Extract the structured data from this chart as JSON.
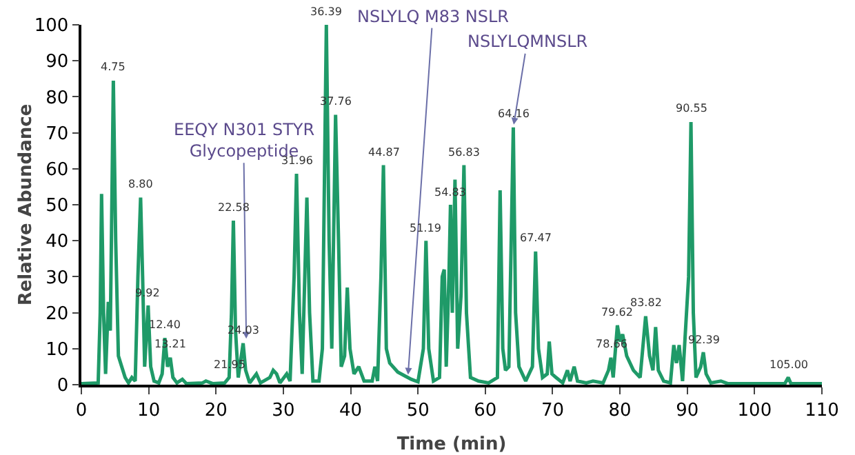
{
  "chart_data": {
    "type": "line",
    "xlabel": "Time (min)",
    "ylabel": "Relative Abundance",
    "xlim": [
      0,
      110
    ],
    "xticks": [
      0,
      10,
      20,
      30,
      40,
      50,
      60,
      70,
      80,
      90,
      100,
      110
    ],
    "ylim": [
      0,
      100
    ],
    "yticks": [
      0,
      10,
      20,
      30,
      40,
      50,
      60,
      70,
      80,
      90,
      100
    ],
    "grid": false,
    "marker": "none",
    "line_style": "solid",
    "series": [
      {
        "color": "#1f9a68",
        "x": [
          0,
          2.5,
          2.8,
          3.0,
          3.3,
          3.6,
          4.0,
          4.3,
          4.75,
          5.1,
          5.5,
          6.0,
          6.5,
          7.0,
          7.5,
          8.0,
          8.4,
          8.8,
          9.1,
          9.4,
          9.92,
          10.3,
          10.8,
          11.5,
          12.0,
          12.4,
          12.8,
          13.21,
          13.6,
          14.2,
          15.0,
          15.6,
          18.0,
          18.5,
          19.5,
          21.3,
          21.95,
          22.3,
          22.58,
          22.9,
          23.3,
          24.03,
          24.4,
          25.0,
          26.0,
          26.6,
          28.0,
          28.5,
          29.0,
          29.5,
          30.5,
          31.0,
          31.6,
          31.96,
          32.4,
          32.8,
          33.5,
          33.9,
          34.4,
          35.3,
          35.8,
          36.39,
          36.8,
          37.2,
          37.76,
          38.2,
          38.6,
          39.1,
          39.5,
          39.9,
          40.5,
          41.2,
          42.0,
          43.2,
          43.6,
          44.0,
          44.5,
          44.87,
          45.3,
          45.8,
          47.0,
          48.0,
          49.0,
          50.0,
          50.8,
          51.19,
          51.6,
          52.3,
          53.2,
          53.6,
          53.9,
          54.2,
          54.6,
          54.83,
          55.1,
          55.5,
          55.9,
          56.4,
          56.83,
          57.2,
          57.8,
          59.0,
          60.5,
          61.8,
          62.2,
          62.6,
          63.0,
          63.5,
          64.16,
          64.5,
          65.0,
          65.5,
          66.0,
          67.0,
          67.47,
          67.9,
          68.5,
          69.2,
          69.5,
          69.9,
          70.5,
          71.5,
          72.2,
          72.6,
          73.2,
          73.7,
          75.0,
          76.0,
          77.5,
          78.3,
          78.66,
          79.0,
          79.62,
          80.0,
          80.4,
          81.0,
          82.0,
          83.0,
          83.82,
          84.4,
          84.9,
          85.3,
          85.7,
          86.5,
          87.5,
          88.0,
          88.4,
          88.8,
          89.3,
          90.2,
          90.55,
          90.9,
          91.3,
          92.0,
          92.39,
          92.8,
          93.5,
          95,
          96,
          104.5,
          105.0,
          105.4,
          110
        ],
        "values": [
          0.3,
          0.5,
          20,
          53,
          20,
          3,
          23,
          15,
          84.5,
          40,
          8,
          5,
          2,
          0.5,
          2,
          1,
          30,
          52,
          30,
          5,
          22,
          5,
          1,
          0.5,
          3,
          13,
          5,
          7.5,
          2,
          0.5,
          1.5,
          0.3,
          0.5,
          1,
          0.3,
          0.5,
          2,
          20,
          45.6,
          15,
          2,
          11.5,
          4,
          0.5,
          3,
          0.5,
          2,
          4,
          3,
          0.5,
          3,
          1,
          30,
          58.6,
          20,
          3,
          52,
          20,
          1,
          1,
          10,
          100,
          40,
          10,
          75,
          40,
          5,
          8,
          27,
          10,
          3,
          5,
          1,
          1,
          5,
          1,
          30,
          61,
          10,
          6,
          3.5,
          2.5,
          1.5,
          0.8,
          10,
          40,
          10,
          1,
          2,
          30,
          32,
          5,
          30,
          50,
          20,
          57,
          10,
          25,
          61,
          20,
          2,
          1,
          0.5,
          2,
          54,
          10,
          4,
          5,
          71.5,
          20,
          5,
          3,
          1,
          5,
          37,
          10,
          2,
          3,
          12,
          3,
          2,
          0.5,
          4,
          1,
          5,
          1,
          0.5,
          1,
          0.5,
          4,
          7.5,
          2,
          16.5,
          12,
          14,
          8,
          4,
          2,
          19,
          8,
          4,
          16,
          4,
          1,
          0.5,
          11,
          6,
          11,
          1,
          30,
          73,
          20,
          2,
          5,
          9,
          3,
          0.5,
          1,
          0.3,
          0.3,
          2,
          0.3,
          0.3
        ]
      }
    ],
    "annotations": [
      {
        "text": "EEQY N301 STYR\nGlycopeptide",
        "x": 24.5,
        "y": 12
      },
      {
        "text": "NSLYLQ M83 NSLR",
        "x": 48.5,
        "y": 2
      },
      {
        "text": "NSLYLQMNSLR",
        "x": 64.16,
        "y": 71.5
      },
      {
        "text": "4.75",
        "x": 4.75,
        "y": 84.5
      },
      {
        "text": "8.80",
        "x": 8.8,
        "y": 52
      },
      {
        "text": "9.92",
        "x": 9.92,
        "y": 22
      },
      {
        "text": "12.40",
        "x": 12.4,
        "y": 13
      },
      {
        "text": "13.21",
        "x": 13.21,
        "y": 7.5
      },
      {
        "text": "21.95",
        "x": 21.95,
        "y": 2
      },
      {
        "text": "22.58",
        "x": 22.58,
        "y": 45.6
      },
      {
        "text": "24.03",
        "x": 24.03,
        "y": 11.5
      },
      {
        "text": "31.96",
        "x": 31.96,
        "y": 58.6
      },
      {
        "text": "36.39",
        "x": 36.39,
        "y": 100
      },
      {
        "text": "37.76",
        "x": 37.76,
        "y": 75
      },
      {
        "text": "44.87",
        "x": 44.87,
        "y": 61
      },
      {
        "text": "51.19",
        "x": 51.19,
        "y": 40
      },
      {
        "text": "54.83",
        "x": 54.83,
        "y": 50
      },
      {
        "text": "56.83",
        "x": 56.83,
        "y": 61
      },
      {
        "text": "64.16",
        "x": 64.16,
        "y": 71.5
      },
      {
        "text": "67.47",
        "x": 67.47,
        "y": 37
      },
      {
        "text": "78.66",
        "x": 78.66,
        "y": 7.5
      },
      {
        "text": "79.62",
        "x": 79.62,
        "y": 16.5
      },
      {
        "text": "83.82",
        "x": 83.82,
        "y": 19
      },
      {
        "text": "90.55",
        "x": 90.55,
        "y": 73
      },
      {
        "text": "92.39",
        "x": 92.39,
        "y": 9
      },
      {
        "text": "105.00",
        "x": 105.0,
        "y": 2
      }
    ]
  }
}
